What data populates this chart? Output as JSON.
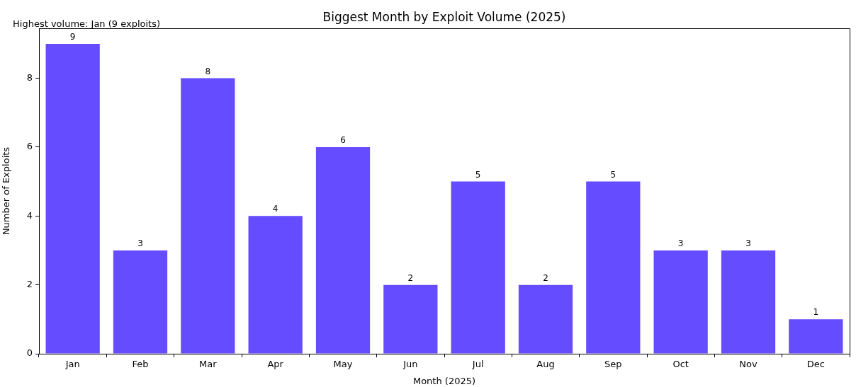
{
  "chart_data": {
    "type": "bar",
    "title": "Biggest Month by Exploit Volume (2025)",
    "xlabel": "Month (2025)",
    "ylabel": "Number of Exploits",
    "annotations": [
      "Highest volume: Jan (9 exploits)"
    ],
    "categories": [
      "Jan",
      "Feb",
      "Mar",
      "Apr",
      "May",
      "Jun",
      "Jul",
      "Aug",
      "Sep",
      "Oct",
      "Nov",
      "Dec"
    ],
    "values": [
      9,
      3,
      8,
      4,
      6,
      2,
      5,
      2,
      5,
      3,
      3,
      1
    ],
    "color": "#654cff",
    "ylim": [
      0,
      9.45
    ],
    "yticks": [
      0,
      2,
      4,
      6,
      8
    ],
    "grid": false,
    "legend": false,
    "data_labels": true
  }
}
